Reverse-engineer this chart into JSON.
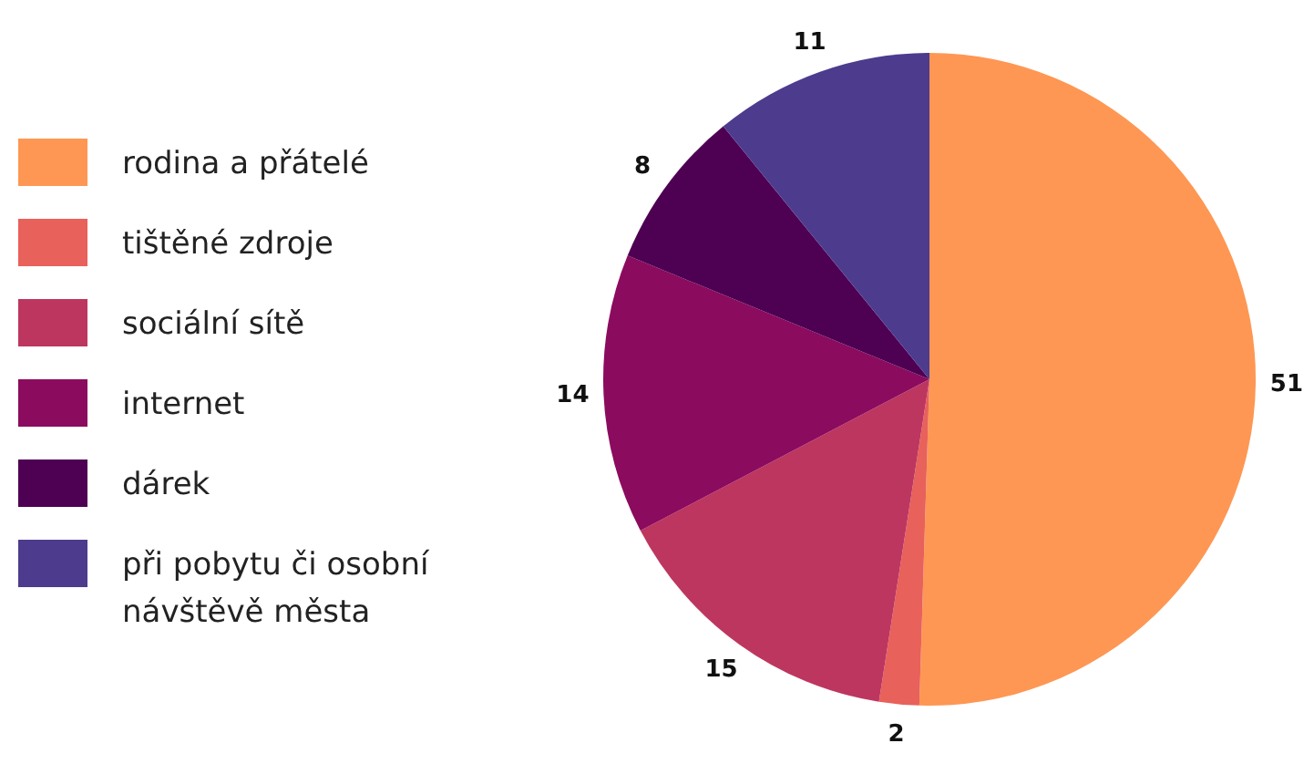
{
  "chart_data": {
    "type": "pie",
    "categories": [
      "rodina a přátelé",
      "tištěné zdroje",
      "sociální sítě",
      "internet",
      "dárek",
      "při pobytu či osobní návštěvě města"
    ],
    "values": [
      51,
      2,
      15,
      14,
      8,
      11
    ],
    "colors": [
      "#fe9753",
      "#e8615a",
      "#bd3660",
      "#8b0b5e",
      "#4e0053",
      "#4d3b8e"
    ],
    "data_labels": true,
    "legend": "left"
  }
}
